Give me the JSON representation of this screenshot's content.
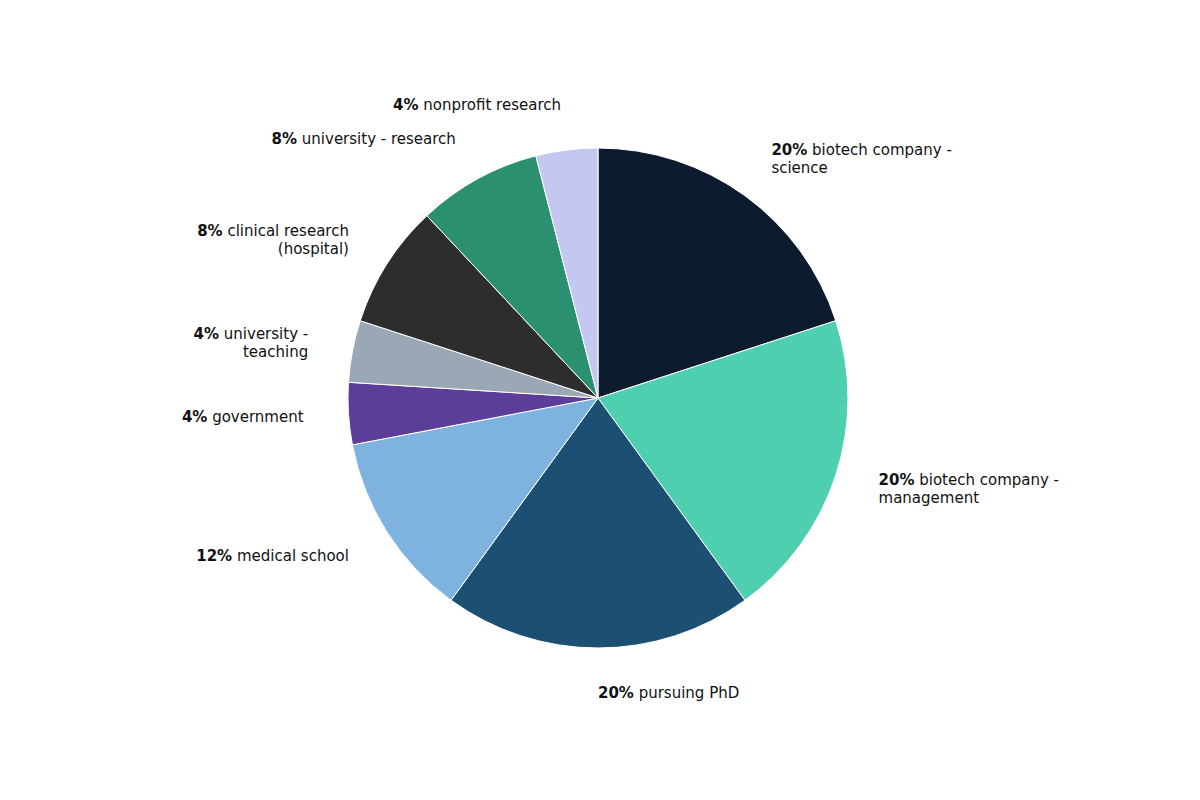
{
  "chart_data": {
    "type": "pie",
    "categories": [
      "biotech company -\nscience",
      "biotech company -\nmanagement",
      "pursuing PhD",
      "medical school",
      "government",
      "university -\nteaching",
      "clinical research\n(hospital)",
      "university - research",
      "nonprofit research"
    ],
    "values": [
      20,
      20,
      20,
      12,
      4,
      4,
      8,
      8,
      4
    ],
    "value_labels": [
      "20%",
      "20%",
      "20%",
      "12%",
      "4%",
      "4%",
      "8%",
      "8%",
      "4%"
    ],
    "colors": [
      "#0d1b2e",
      "#4ecfb0",
      "#1b5072",
      "#7eb3e0",
      "#5c3d99",
      "#9aa8b5",
      "#2d2d2d",
      "#2a9070",
      "#c4c8f0"
    ],
    "data_labels": true
  }
}
